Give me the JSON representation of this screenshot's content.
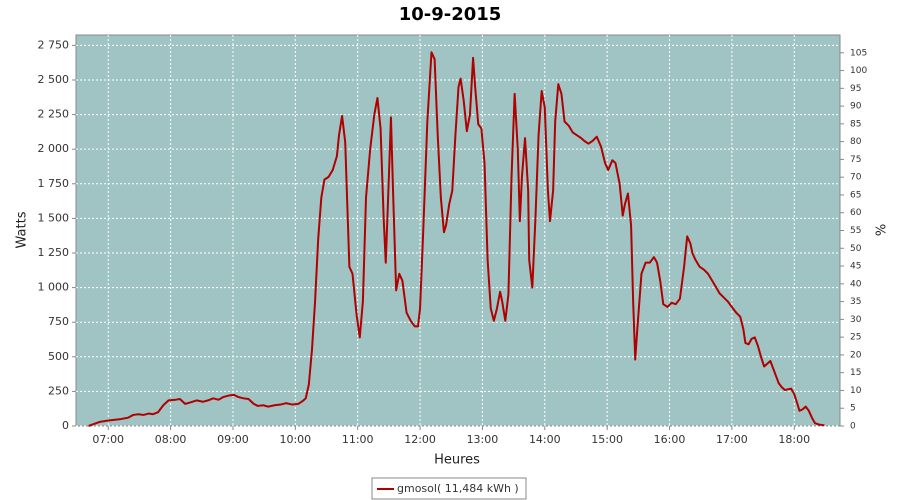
{
  "chart_data": {
    "type": "line",
    "title": "10-9-2015",
    "xlabel": "Heures",
    "ylabel": "Watts",
    "y2label": "%",
    "x": [
      "06:41",
      "06:52",
      "07:00",
      "07:12",
      "07:19",
      "07:24",
      "07:29",
      "07:34",
      "07:39",
      "07:43",
      "07:48",
      "07:53",
      "07:58",
      "08:05",
      "08:09",
      "08:14",
      "08:19",
      "08:25",
      "08:31",
      "08:36",
      "08:41",
      "08:46",
      "08:51",
      "08:56",
      "09:01",
      "09:05",
      "09:10",
      "09:15",
      "09:20",
      "09:24",
      "09:29",
      "09:34",
      "09:40",
      "09:46",
      "09:51",
      "09:57",
      "10:03",
      "10:07",
      "10:10",
      "10:13",
      "10:16",
      "10:19",
      "10:22",
      "10:25",
      "10:28",
      "10:32",
      "10:36",
      "10:40",
      "10:42",
      "10:45",
      "10:48",
      "10:50",
      "10:52",
      "10:55",
      "10:59",
      "11:02",
      "11:05",
      "11:08",
      "11:12",
      "11:16",
      "11:19",
      "11:22",
      "11:25",
      "11:27",
      "11:30",
      "11:32",
      "11:34",
      "11:37",
      "11:40",
      "11:43",
      "11:47",
      "11:51",
      "11:55",
      "11:58",
      "12:00",
      "12:03",
      "12:07",
      "12:11",
      "12:14",
      "12:17",
      "12:20",
      "12:23",
      "12:25",
      "12:28",
      "12:31",
      "12:34",
      "12:37",
      "12:39",
      "12:42",
      "12:45",
      "12:48",
      "12:51",
      "12:53",
      "12:56",
      "12:59",
      "13:02",
      "13:05",
      "13:08",
      "13:11",
      "13:14",
      "13:17",
      "13:19",
      "13:22",
      "13:25",
      "13:28",
      "13:31",
      "13:34",
      "13:36",
      "13:38",
      "13:41",
      "13:44",
      "13:45",
      "13:48",
      "13:51",
      "13:54",
      "13:57",
      "14:00",
      "14:03",
      "14:05",
      "14:08",
      "14:10",
      "14:13",
      "14:16",
      "14:19",
      "14:23",
      "14:27",
      "14:31",
      "14:35",
      "14:38",
      "14:42",
      "14:46",
      "14:50",
      "14:54",
      "14:58",
      "15:01",
      "15:05",
      "15:08",
      "15:12",
      "15:15",
      "15:17",
      "15:20",
      "15:23",
      "15:25",
      "15:27",
      "15:29",
      "15:33",
      "15:37",
      "15:41",
      "15:45",
      "15:48",
      "15:51",
      "15:54",
      "15:58",
      "16:02",
      "16:06",
      "16:10",
      "16:14",
      "16:17",
      "16:20",
      "16:22",
      "16:25",
      "16:29",
      "16:33",
      "16:37",
      "16:41",
      "16:45",
      "16:48",
      "16:52",
      "16:56",
      "17:00",
      "17:04",
      "17:08",
      "17:11",
      "17:13",
      "17:16",
      "17:19",
      "17:22",
      "17:25",
      "17:28",
      "17:31",
      "17:34",
      "17:37",
      "17:39",
      "17:42",
      "17:45",
      "17:48",
      "17:51",
      "17:54",
      "17:57",
      "18:00",
      "18:03",
      "18:05",
      "18:08",
      "18:11",
      "18:14",
      "18:17",
      "18:20",
      "18:24",
      "18:29"
    ],
    "series": [
      {
        "name": "gmosol( 11,484 kWh )",
        "color": "#b00000",
        "values": [
          0,
          30,
          40,
          50,
          60,
          80,
          85,
          80,
          90,
          85,
          100,
          150,
          185,
          190,
          195,
          160,
          170,
          185,
          175,
          185,
          200,
          190,
          210,
          220,
          225,
          210,
          200,
          195,
          160,
          145,
          150,
          140,
          150,
          155,
          165,
          155,
          160,
          180,
          200,
          300,
          550,
          900,
          1350,
          1650,
          1780,
          1800,
          1850,
          1950,
          2100,
          2240,
          2050,
          1600,
          1150,
          1100,
          800,
          640,
          900,
          1650,
          2000,
          2250,
          2370,
          2150,
          1500,
          1180,
          1800,
          2230,
          1700,
          980,
          1100,
          1050,
          820,
          760,
          720,
          720,
          850,
          1400,
          2200,
          2700,
          2650,
          2100,
          1650,
          1400,
          1450,
          1600,
          1700,
          2100,
          2450,
          2510,
          2350,
          2130,
          2250,
          2660,
          2450,
          2180,
          2150,
          1900,
          1200,
          850,
          760,
          850,
          970,
          900,
          760,
          950,
          1800,
          2400,
          2000,
          1480,
          1800,
          2080,
          1700,
          1200,
          1000,
          1500,
          2100,
          2420,
          2300,
          1700,
          1480,
          1700,
          2200,
          2470,
          2400,
          2200,
          2170,
          2120,
          2100,
          2080,
          2060,
          2040,
          2060,
          2090,
          2020,
          1900,
          1850,
          1920,
          1900,
          1750,
          1520,
          1600,
          1680,
          1450,
          900,
          480,
          700,
          1100,
          1180,
          1180,
          1220,
          1180,
          1050,
          880,
          860,
          890,
          880,
          920,
          1150,
          1370,
          1320,
          1250,
          1200,
          1150,
          1130,
          1100,
          1050,
          1000,
          960,
          930,
          900,
          860,
          820,
          790,
          700,
          600,
          590,
          630,
          640,
          580,
          500,
          430,
          450,
          470,
          430,
          370,
          310,
          280,
          260,
          265,
          270,
          230,
          160,
          110,
          120,
          140,
          110,
          60,
          20,
          10,
          5
        ]
      }
    ],
    "xlim": [
      "06:29",
      "18:44"
    ],
    "xticks": [
      "07:00",
      "08:00",
      "09:00",
      "10:00",
      "11:00",
      "12:00",
      "13:00",
      "14:00",
      "15:00",
      "16:00",
      "17:00",
      "18:00"
    ],
    "ylim": [
      0,
      2825
    ],
    "yticks": [
      0,
      250,
      500,
      750,
      {
        "value": 1000,
        "label": "1 000"
      },
      {
        "value": 1250,
        "label": "1 250"
      },
      {
        "value": 1500,
        "label": "1 500"
      },
      {
        "value": 1750,
        "label": "1 750"
      },
      {
        "value": 2000,
        "label": "2 000"
      },
      {
        "value": 2250,
        "label": "2 250"
      },
      {
        "value": 2500,
        "label": "2 500"
      },
      {
        "value": 2750,
        "label": "2 750"
      }
    ],
    "y2lim": [
      0,
      110
    ],
    "y2ticks": [
      0,
      5,
      10,
      15,
      20,
      25,
      30,
      35,
      40,
      45,
      50,
      55,
      60,
      65,
      70,
      75,
      80,
      85,
      90,
      95,
      100,
      105
    ],
    "grid": true,
    "plot_background": "#a0c4c4"
  }
}
